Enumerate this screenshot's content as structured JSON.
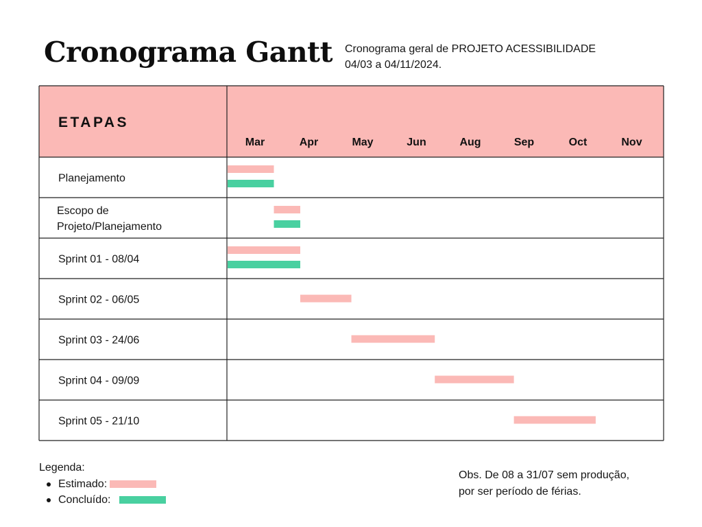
{
  "header": {
    "title": "Cronograma Gantt",
    "subtitle_line1": "Cronograma geral de PROJETO ACESSIBILIDADE",
    "subtitle_line2": "04/03 a 04/11/2024."
  },
  "chart_data": {
    "type": "gantt",
    "stage_column_header": "ETAPAS",
    "months": [
      "Mar",
      "Apr",
      "May",
      "Jun",
      "Aug",
      "Sep",
      "Oct",
      "Nov"
    ],
    "tasks": [
      {
        "label_lines": [
          "Planejamento"
        ],
        "estimated": [
          0.0,
          0.86
        ],
        "completed": [
          0.0,
          0.86
        ]
      },
      {
        "label_lines": [
          "Escopo de",
          "Projeto/Planejamento"
        ],
        "estimated": [
          0.86,
          1.35
        ],
        "completed": [
          0.86,
          1.35
        ]
      },
      {
        "label_lines": [
          "Sprint 01 - 08/04"
        ],
        "estimated": [
          0.0,
          1.35
        ],
        "completed": [
          0.0,
          1.35
        ]
      },
      {
        "label_lines": [
          "Sprint 02 - 06/05"
        ],
        "estimated": [
          1.35,
          2.3
        ]
      },
      {
        "label_lines": [
          "Sprint 03 - 24/06"
        ],
        "estimated": [
          2.3,
          3.85
        ]
      },
      {
        "label_lines": [
          "Sprint 04 - 09/09"
        ],
        "estimated": [
          3.85,
          5.32
        ]
      },
      {
        "label_lines": [
          "Sprint 05 - 21/10"
        ],
        "estimated": [
          5.32,
          6.84
        ]
      }
    ],
    "colors": {
      "estimated": "#fbb9b6",
      "completed": "#49d0a0",
      "header_fill": "#fbb9b6",
      "grid": "#222222"
    }
  },
  "legend": {
    "title": "Legenda:",
    "estimated_label": "Estimado:",
    "completed_label": "Concluído:"
  },
  "note": {
    "line1": "Obs. De 08 a 31/07 sem produção,",
    "line2": "por ser período de férias."
  }
}
